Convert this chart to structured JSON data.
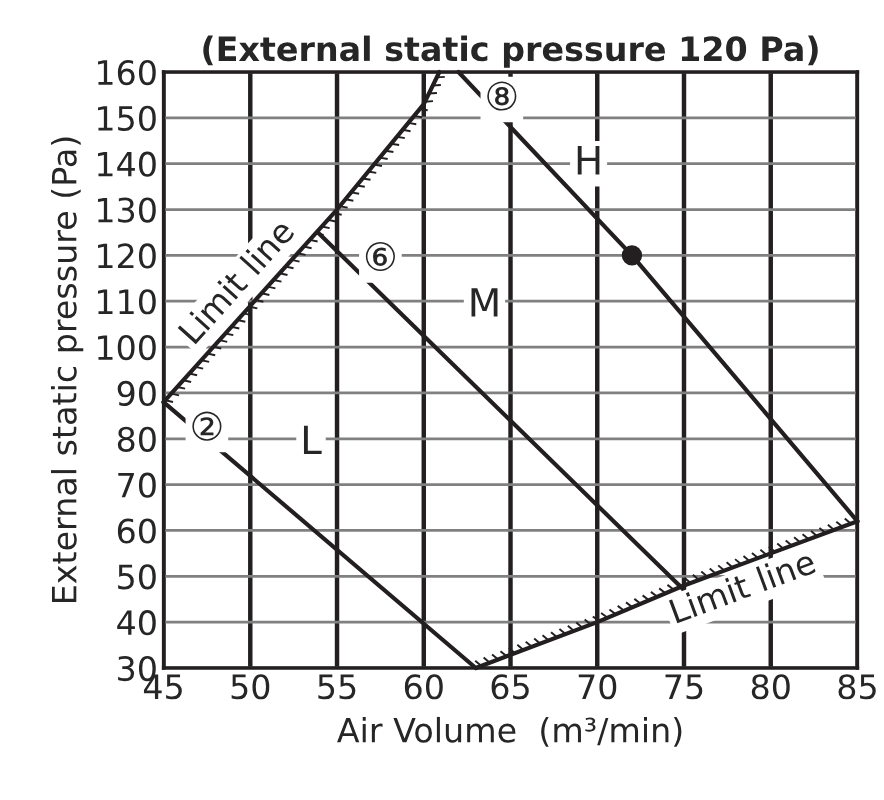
{
  "chart_data": {
    "type": "line",
    "title": "(External static pressure 120 Pa)",
    "xlabel": "Air Volume  (m³/min)",
    "ylabel": "External static pressure (Pa)",
    "series": [
      {
        "color": "#231f20",
        "x": [
          45,
          63
        ],
        "values": [
          88,
          30
        ]
      },
      {
        "color": "#231f20",
        "x": [
          53.9,
          75
        ],
        "values": [
          125,
          47
        ]
      },
      {
        "color": "#231f20",
        "x": [
          62,
          72,
          85
        ],
        "values": [
          160,
          120,
          62
        ]
      },
      {
        "name": "Limit line",
        "color": "#231f20",
        "x": [
          60.9,
          60,
          55,
          50,
          45
        ],
        "values": [
          160,
          153,
          130,
          109,
          88
        ]
      },
      {
        "name": "Limit line",
        "color": "#231f20",
        "x": [
          63,
          70,
          75,
          80,
          85
        ],
        "values": [
          30,
          40,
          48,
          55,
          62
        ]
      },
      {
        "type": "scatter",
        "color": "#231f20",
        "marker": "circle",
        "x": [
          72
        ],
        "values": [
          120
        ]
      }
    ],
    "annotations": [
      {
        "text": "②",
        "x": 47.5,
        "y": 82
      },
      {
        "text": "L",
        "x": 53.5,
        "y": 79
      },
      {
        "text": "⑥",
        "x": 57.5,
        "y": 119
      },
      {
        "text": "M",
        "x": 63.5,
        "y": 109
      },
      {
        "text": "⑧",
        "x": 64.5,
        "y": 154
      },
      {
        "text": "H",
        "x": 69.5,
        "y": 140
      }
    ],
    "xlim": [
      45,
      85
    ],
    "xticks": [
      45,
      50,
      55,
      60,
      65,
      70,
      75,
      80,
      85
    ],
    "ylim": [
      30,
      160
    ],
    "yticks": [
      30,
      40,
      50,
      60,
      70,
      80,
      90,
      100,
      110,
      120,
      130,
      140,
      150,
      160
    ],
    "grid": true
  }
}
